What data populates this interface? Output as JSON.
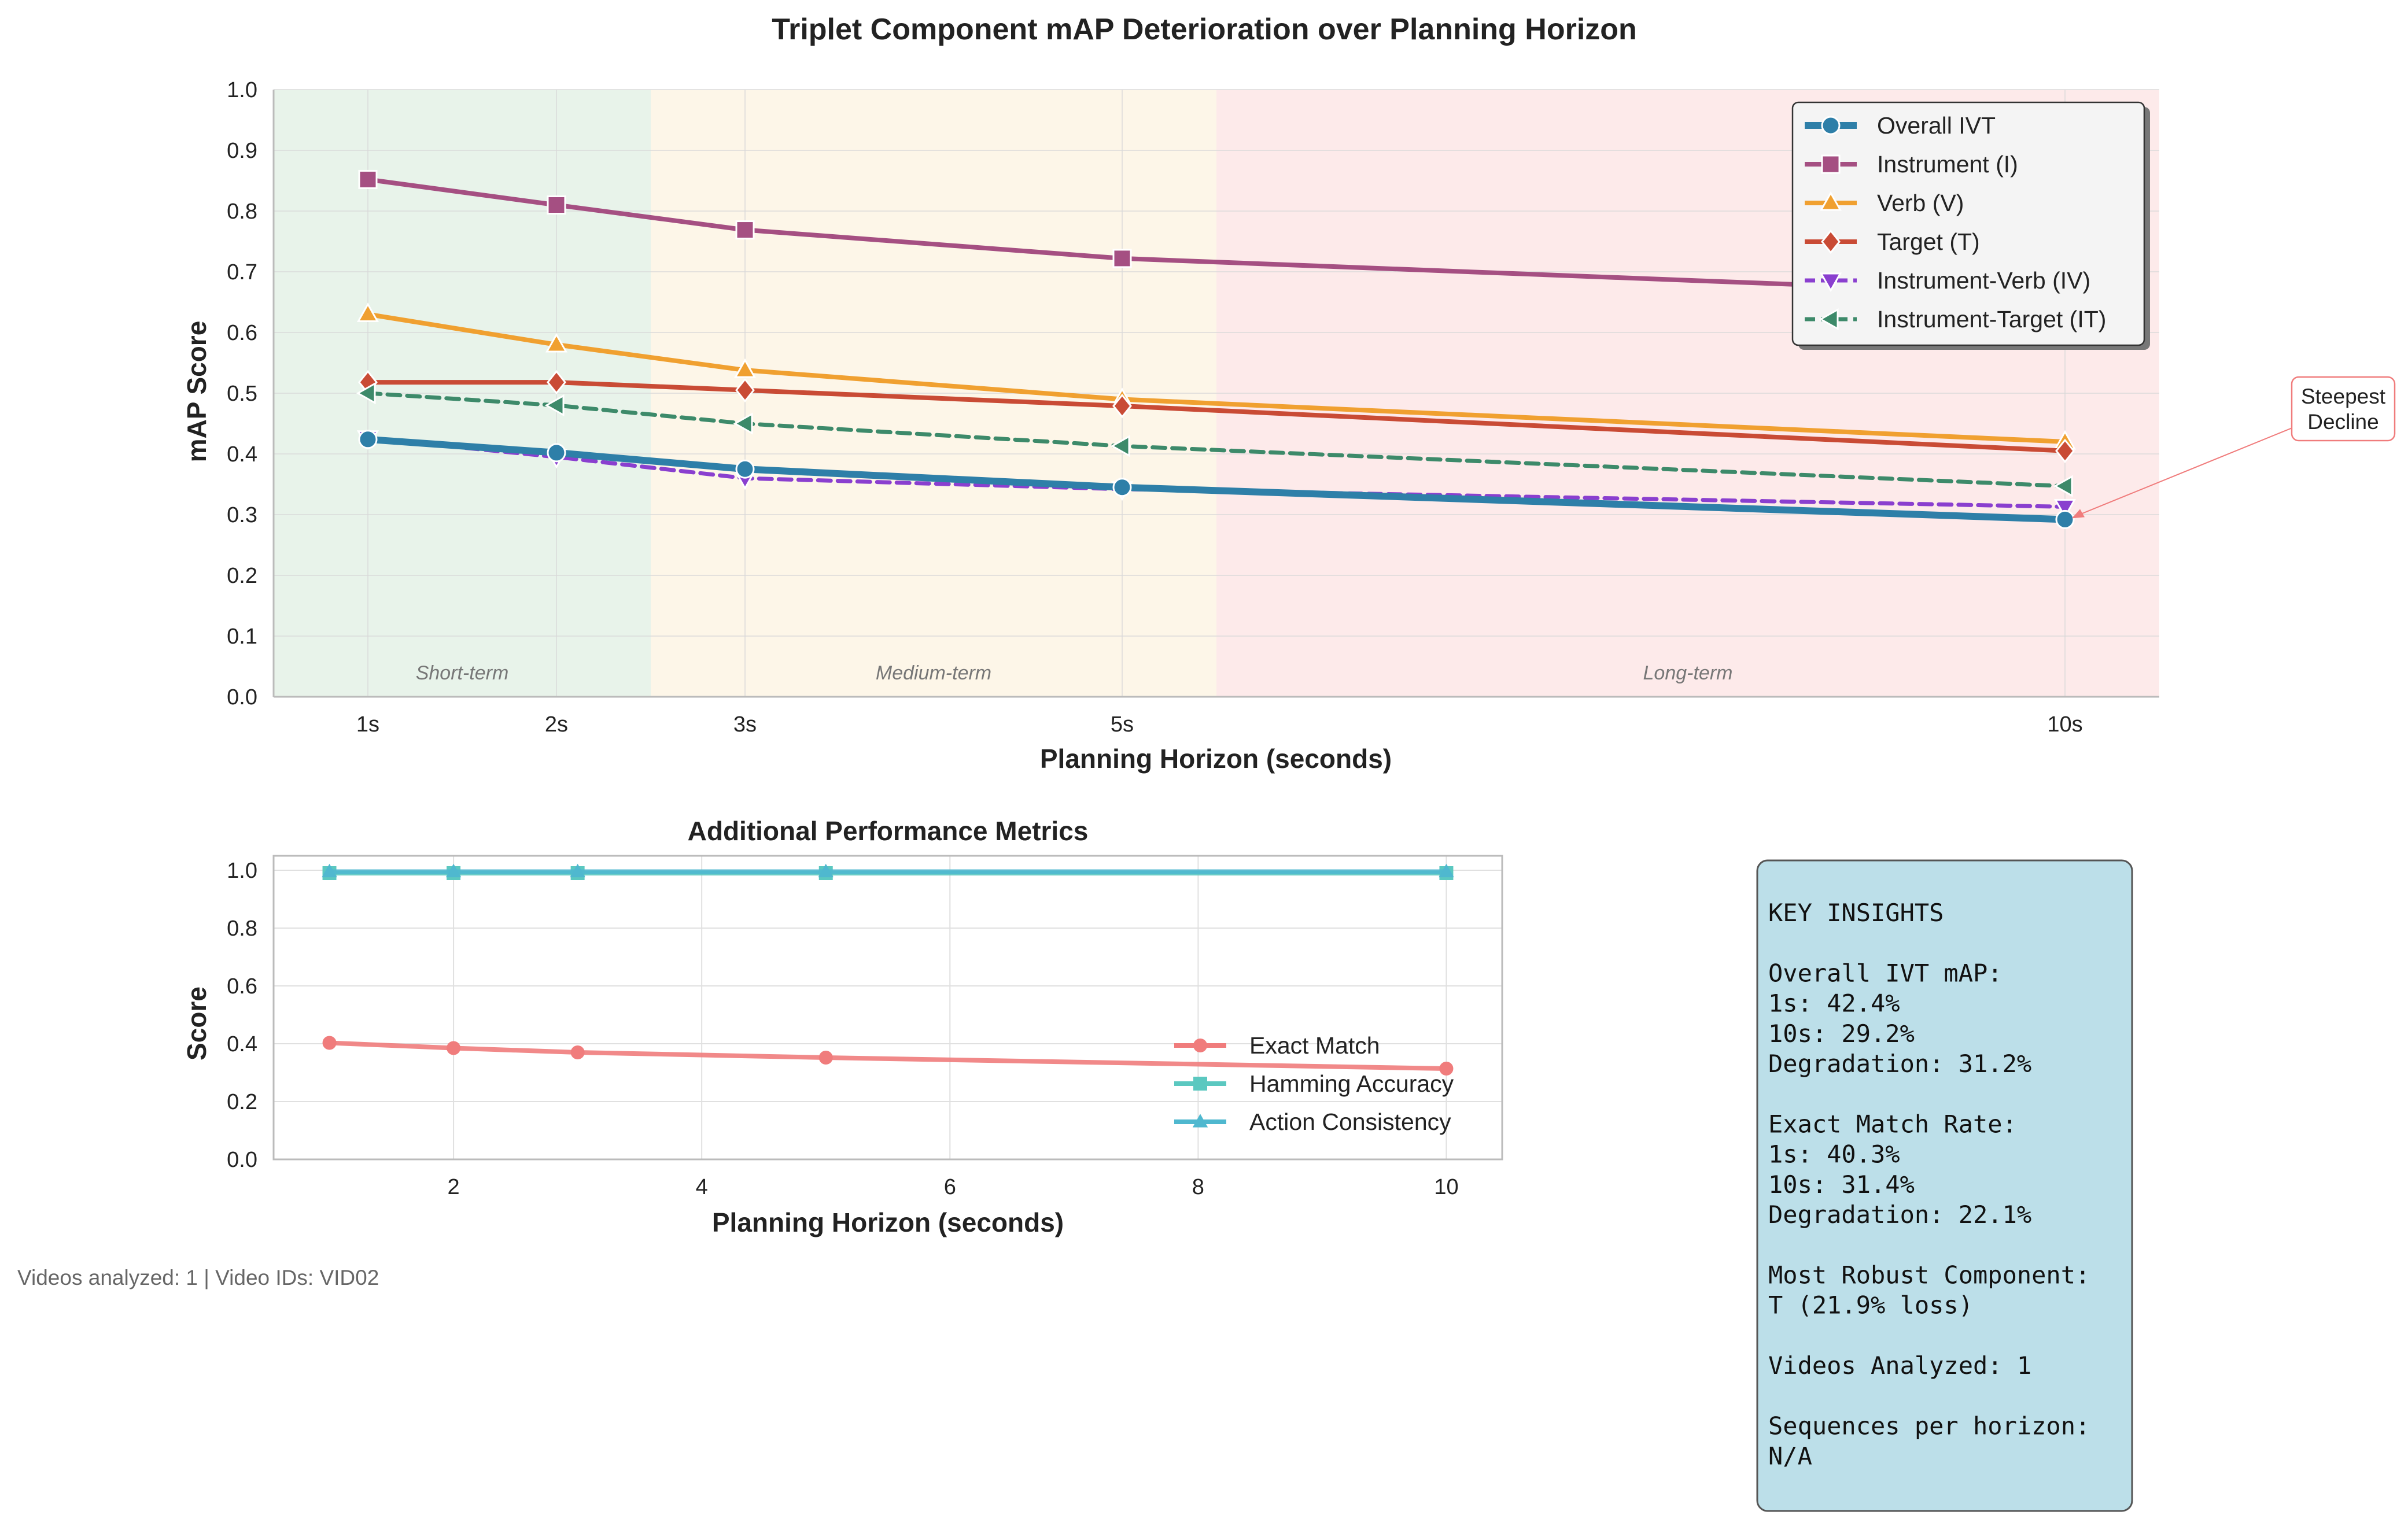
{
  "chart_data": [
    {
      "type": "line",
      "title": "Triplet Component mAP Deterioration over Planning Horizon",
      "xlabel": "Planning Horizon (seconds)",
      "ylabel": "mAP Score",
      "x": [
        1,
        2,
        3,
        5,
        10
      ],
      "x_tick_labels": [
        "1s",
        "2s",
        "3s",
        "5s",
        "10s"
      ],
      "xlim": [
        0.5,
        10.5
      ],
      "ylim": [
        0,
        1
      ],
      "y_ticks": [
        "0.0",
        "0.1",
        "0.2",
        "0.3",
        "0.4",
        "0.5",
        "0.6",
        "0.7",
        "0.8",
        "0.9",
        "1.0"
      ],
      "grid": true,
      "legend_position": "top-right",
      "regions": [
        {
          "label": "Short-term",
          "x_start": 0.5,
          "x_end": 2.5,
          "color": "#e8f3ea"
        },
        {
          "label": "Medium-term",
          "x_start": 2.5,
          "x_end": 5.5,
          "color": "#fdf6e8"
        },
        {
          "label": "Long-term",
          "x_start": 5.5,
          "x_end": 10.5,
          "color": "#fdeaea"
        }
      ],
      "series": [
        {
          "name": "Overall IVT",
          "color": "#2e7fa8",
          "marker": "circle",
          "dash": false,
          "width": 12,
          "values": [
            0.424,
            0.402,
            0.375,
            0.345,
            0.292
          ]
        },
        {
          "name": "Instrument (I)",
          "color": "#a54f82",
          "marker": "square",
          "dash": false,
          "width": 8,
          "values": [
            0.852,
            0.81,
            0.769,
            0.722,
            0.662
          ]
        },
        {
          "name": "Verb (V)",
          "color": "#f0a030",
          "marker": "triangle-up",
          "dash": false,
          "width": 8,
          "values": [
            0.63,
            0.58,
            0.538,
            0.49,
            0.42
          ]
        },
        {
          "name": "Target (T)",
          "color": "#c94b35",
          "marker": "diamond",
          "dash": false,
          "width": 8,
          "values": [
            0.518,
            0.518,
            0.505,
            0.479,
            0.405
          ]
        },
        {
          "name": "Instrument-Verb (IV)",
          "color": "#8a3fcf",
          "marker": "triangle-down",
          "dash": true,
          "width": 7,
          "values": [
            0.426,
            0.395,
            0.36,
            0.342,
            0.313
          ]
        },
        {
          "name": "Instrument-Target (IT)",
          "color": "#3d8a6a",
          "marker": "triangle-left",
          "dash": true,
          "width": 7,
          "values": [
            0.5,
            0.48,
            0.45,
            0.413,
            0.347
          ]
        }
      ],
      "annotation": {
        "text_line1": "Steepest",
        "text_line2": "Decline",
        "x": 10,
        "y": 0.292
      }
    },
    {
      "type": "line",
      "title": "Additional Performance Metrics",
      "xlabel": "Planning Horizon (seconds)",
      "ylabel": "Score",
      "x": [
        1,
        2,
        3,
        5,
        10
      ],
      "xlim": [
        0.55,
        10.45
      ],
      "ylim": [
        0,
        1.05
      ],
      "x_ticks": [
        "2",
        "4",
        "6",
        "8",
        "10"
      ],
      "y_ticks": [
        "0.0",
        "0.2",
        "0.4",
        "0.6",
        "0.8",
        "1.0"
      ],
      "grid": true,
      "legend_position": "center-right",
      "series": [
        {
          "name": "Exact Match",
          "color": "#f07c7c",
          "marker": "circle",
          "values": [
            0.403,
            0.385,
            0.37,
            0.352,
            0.314
          ]
        },
        {
          "name": "Hamming Accuracy",
          "color": "#5bc8c0",
          "marker": "square",
          "values": [
            0.99,
            0.99,
            0.99,
            0.99,
            0.99
          ]
        },
        {
          "name": "Action Consistency",
          "color": "#4fb8cf",
          "marker": "triangle-up",
          "values": [
            0.995,
            0.995,
            0.995,
            0.995,
            0.995
          ]
        }
      ]
    }
  ],
  "footer_text": "Videos analyzed: 1 | Video IDs: VID02",
  "insights": {
    "lines": [
      "KEY INSIGHTS",
      "",
      "Overall IVT mAP:",
      "1s: 42.4%",
      "10s: 29.2%",
      "Degradation: 31.2%",
      "",
      "Exact Match Rate:",
      "1s: 40.3%",
      "10s: 31.4%",
      "Degradation: 22.1%",
      "",
      "Most Robust Component:",
      "T (21.9% loss)",
      "",
      "Videos Analyzed: 1",
      "",
      "Sequences per horizon:",
      "N/A"
    ]
  }
}
